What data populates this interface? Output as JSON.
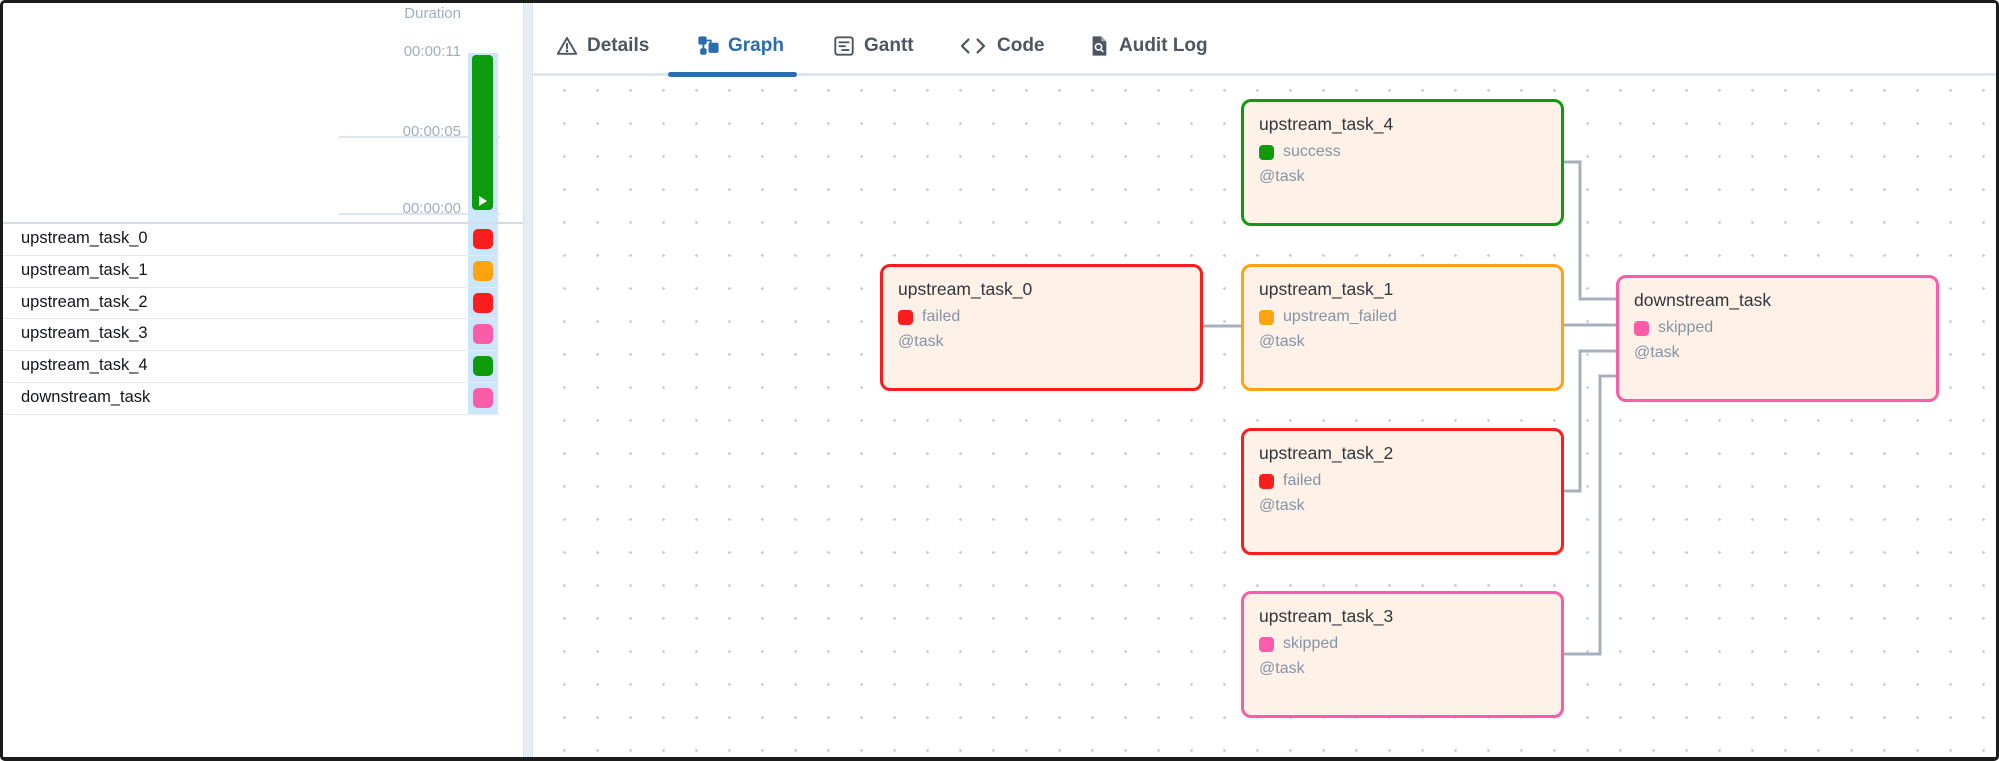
{
  "grid_panel": {
    "duration_header": "Duration",
    "axis_labels": [
      "00:00:11",
      "00:00:05",
      "00:00:00"
    ],
    "tasks": [
      {
        "name": "upstream_task_0",
        "color": "red"
      },
      {
        "name": "upstream_task_1",
        "color": "orange"
      },
      {
        "name": "upstream_task_2",
        "color": "red"
      },
      {
        "name": "upstream_task_3",
        "color": "pink"
      },
      {
        "name": "upstream_task_4",
        "color": "green"
      },
      {
        "name": "downstream_task",
        "color": "pink"
      }
    ],
    "duration_bar": {
      "color": "green",
      "icon": "play-icon"
    }
  },
  "tabs": [
    {
      "label": "Details",
      "icon": "warning-triangle-icon",
      "active": false
    },
    {
      "label": "Graph",
      "icon": "graph-icon",
      "active": true
    },
    {
      "label": "Gantt",
      "icon": "gantt-icon",
      "active": false
    },
    {
      "label": "Code",
      "icon": "code-icon",
      "active": false
    },
    {
      "label": "Audit Log",
      "icon": "audit-log-icon",
      "active": false
    }
  ],
  "graph": {
    "nodes": [
      {
        "id": "upstream_task_4",
        "title": "upstream_task_4",
        "status": "success",
        "color": "green",
        "decorator": "@task"
      },
      {
        "id": "upstream_task_0",
        "title": "upstream_task_0",
        "status": "failed",
        "color": "red",
        "decorator": "@task"
      },
      {
        "id": "upstream_task_1",
        "title": "upstream_task_1",
        "status": "upstream_failed",
        "color": "orange",
        "decorator": "@task"
      },
      {
        "id": "upstream_task_2",
        "title": "upstream_task_2",
        "status": "failed",
        "color": "red",
        "decorator": "@task"
      },
      {
        "id": "upstream_task_3",
        "title": "upstream_task_3",
        "status": "skipped",
        "color": "pink",
        "decorator": "@task"
      },
      {
        "id": "downstream_task",
        "title": "downstream_task",
        "status": "skipped",
        "color": "pink",
        "decorator": "@task"
      }
    ],
    "edges": [
      {
        "from": "upstream_task_0",
        "to": "upstream_task_1"
      },
      {
        "from": "upstream_task_4",
        "to": "downstream_task"
      },
      {
        "from": "upstream_task_1",
        "to": "downstream_task"
      },
      {
        "from": "upstream_task_2",
        "to": "downstream_task"
      },
      {
        "from": "upstream_task_3",
        "to": "downstream_task"
      }
    ]
  },
  "colors": {
    "red": "#fa1d1d",
    "orange": "#ffa410",
    "green": "#0e9b0e",
    "pink": "#fc5ca8",
    "accent_blue": "#2b6cb0",
    "node_bg": "#fdf1e8",
    "edge_gray": "#a6b1bd",
    "run_band_blue": "#cde7fa"
  }
}
